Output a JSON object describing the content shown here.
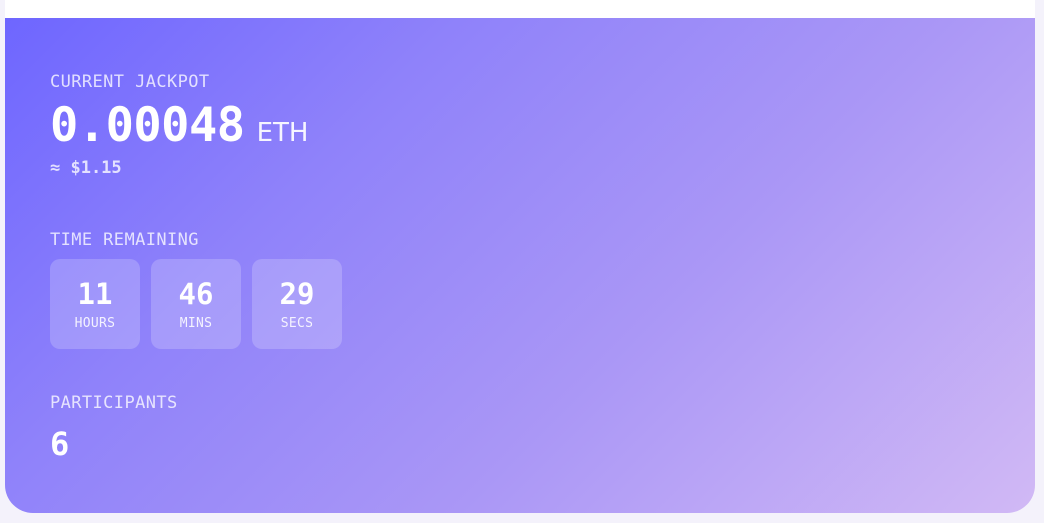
{
  "jackpot": {
    "label": "CURRENT JACKPOT",
    "amount": "0.00048",
    "unit": "ETH",
    "usd_estimate": "≈ $1.15"
  },
  "time_remaining": {
    "label": "TIME REMAINING",
    "units": [
      {
        "value": "11",
        "label": "HOURS"
      },
      {
        "value": "46",
        "label": "MINS"
      },
      {
        "value": "29",
        "label": "SECS"
      }
    ]
  },
  "participants": {
    "label": "PARTICIPANTS",
    "count": "6"
  },
  "colors": {
    "gradient_start": "#6e66ff",
    "gradient_end": "#d1b9f5",
    "text": "#ffffff"
  }
}
